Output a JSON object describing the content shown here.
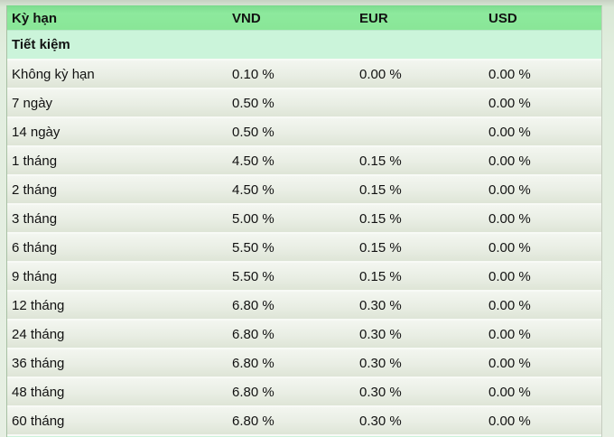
{
  "table": {
    "columns": [
      "Kỳ hạn",
      "VND",
      "EUR",
      "USD"
    ],
    "section_label": "Tiết kiệm",
    "rows": [
      {
        "term": "Không kỳ hạn",
        "vnd": "0.10 %",
        "eur": "0.00 %",
        "usd": "0.00 %"
      },
      {
        "term": "7 ngày",
        "vnd": "0.50 %",
        "eur": "",
        "usd": "0.00 %"
      },
      {
        "term": "14 ngày",
        "vnd": "0.50 %",
        "eur": "",
        "usd": "0.00 %"
      },
      {
        "term": "1 tháng",
        "vnd": "4.50 %",
        "eur": "0.15 %",
        "usd": "0.00 %"
      },
      {
        "term": "2 tháng",
        "vnd": "4.50 %",
        "eur": "0.15 %",
        "usd": "0.00 %"
      },
      {
        "term": "3 tháng",
        "vnd": "5.00 %",
        "eur": "0.15 %",
        "usd": "0.00 %"
      },
      {
        "term": "6 tháng",
        "vnd": "5.50 %",
        "eur": "0.15 %",
        "usd": "0.00 %"
      },
      {
        "term": "9 tháng",
        "vnd": "5.50 %",
        "eur": "0.15 %",
        "usd": "0.00 %"
      },
      {
        "term": "12 tháng",
        "vnd": "6.80 %",
        "eur": "0.30 %",
        "usd": "0.00 %"
      },
      {
        "term": "24 tháng",
        "vnd": "6.80 %",
        "eur": "0.30 %",
        "usd": "0.00 %"
      },
      {
        "term": "36 tháng",
        "vnd": "6.80 %",
        "eur": "0.30 %",
        "usd": "0.00 %"
      },
      {
        "term": "48 tháng",
        "vnd": "6.80 %",
        "eur": "0.30 %",
        "usd": "0.00 %"
      },
      {
        "term": "60 tháng",
        "vnd": "6.80 %",
        "eur": "0.30 %",
        "usd": "0.00 %"
      }
    ]
  },
  "colors": {
    "header_green": "#8ae697",
    "section_mint": "#cbf4da",
    "row_gradient_top": "#f3f6f0",
    "row_gradient_bottom": "#dee5d7",
    "separator": "#f8faf6",
    "text": "#121212",
    "page_background": "#e2eedf"
  },
  "chart_data": {
    "type": "table",
    "title": "Tiết kiệm",
    "columns": [
      "Kỳ hạn",
      "VND",
      "EUR",
      "USD"
    ],
    "rows": [
      [
        "Không kỳ hạn",
        "0.10 %",
        "0.00 %",
        "0.00 %"
      ],
      [
        "7 ngày",
        "0.50 %",
        "",
        "0.00 %"
      ],
      [
        "14 ngày",
        "0.50 %",
        "",
        "0.00 %"
      ],
      [
        "1 tháng",
        "4.50 %",
        "0.15 %",
        "0.00 %"
      ],
      [
        "2 tháng",
        "4.50 %",
        "0.15 %",
        "0.00 %"
      ],
      [
        "3 tháng",
        "5.00 %",
        "0.15 %",
        "0.00 %"
      ],
      [
        "6 tháng",
        "5.50 %",
        "0.15 %",
        "0.00 %"
      ],
      [
        "9 tháng",
        "5.50 %",
        "0.15 %",
        "0.00 %"
      ],
      [
        "12 tháng",
        "6.80 %",
        "0.30 %",
        "0.00 %"
      ],
      [
        "24 tháng",
        "6.80 %",
        "0.30 %",
        "0.00 %"
      ],
      [
        "36 tháng",
        "6.80 %",
        "0.30 %",
        "0.00 %"
      ],
      [
        "48 tháng",
        "6.80 %",
        "0.30 %",
        "0.00 %"
      ],
      [
        "60 tháng",
        "6.80 %",
        "0.30 %",
        "0.00 %"
      ]
    ],
    "units": "percent per annum",
    "notes": "EUR cells are blank for 7 ngày and 14 ngày; a next section row is cut off at the bottom edge"
  }
}
